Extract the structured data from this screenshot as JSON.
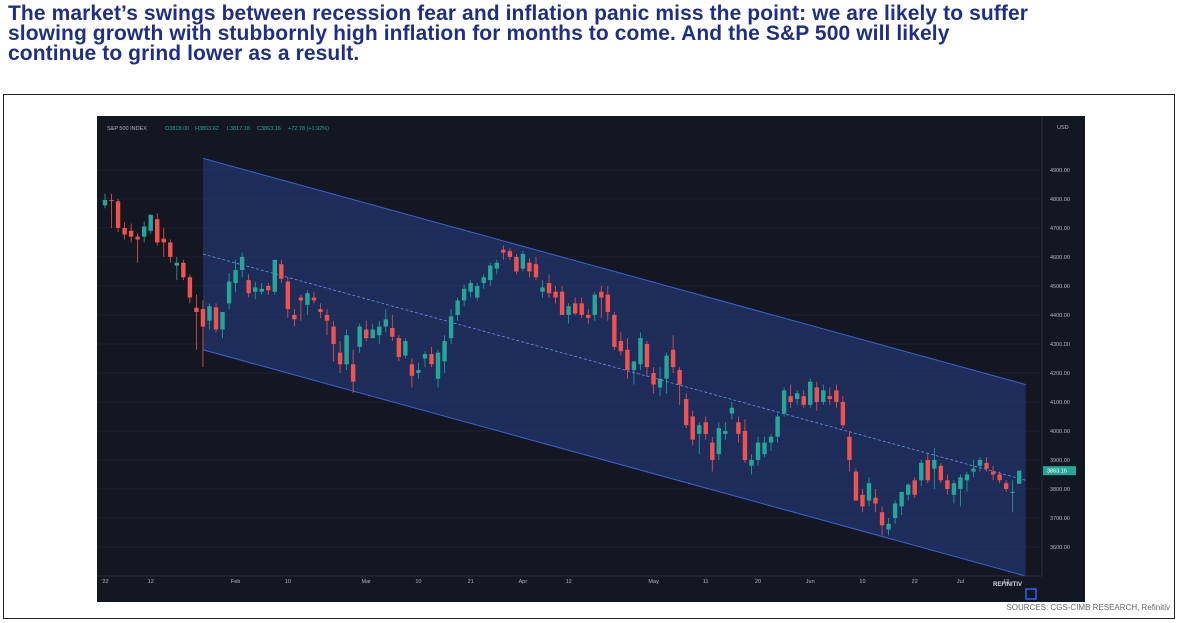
{
  "headline": {
    "line1": "The market’s swings between recession fear and inflation panic miss the point: we are likely to suffer",
    "line2": "slowing growth with stubbornly high inflation for months to come. And the S&P 500 will likely",
    "line3": "continue to grind lower as a result."
  },
  "source": "SOURCES: CGS-CIMB RESEARCH, Refinitiv",
  "chart_data": {
    "type": "candlestick",
    "info": {
      "symbol": "S&P 500 INDEX",
      "open": "O3818.00",
      "high": "H3863.62",
      "low": "L3817.18",
      "close": "C3863.16",
      "change": "+72.78 (+1.92%)"
    },
    "currency": "USD",
    "brand": "REFINITIV",
    "last_price": "3863.16",
    "ylim": [
      3500,
      5010
    ],
    "y_ticks": [
      3600,
      3700,
      3800,
      3900,
      4000,
      4100,
      4200,
      4300,
      4400,
      4500,
      4600,
      4700,
      4800,
      4900
    ],
    "y_tick_labels": [
      "3600.00",
      "3700.00",
      "3800.00",
      "3900.00",
      "4000.00",
      "4100.00",
      "4200.00",
      "4300.00",
      "4400.00",
      "4500.00",
      "4600.00",
      "4700.00",
      "4800.00",
      "4900.00"
    ],
    "x_tick_labels": [
      {
        "i": 0,
        "label": "'22"
      },
      {
        "i": 7,
        "label": "12"
      },
      {
        "i": 20,
        "label": "Feb"
      },
      {
        "i": 28,
        "label": "10"
      },
      {
        "i": 40,
        "label": "Mar"
      },
      {
        "i": 48,
        "label": "10"
      },
      {
        "i": 56,
        "label": "21"
      },
      {
        "i": 64,
        "label": "Apr"
      },
      {
        "i": 71,
        "label": "12"
      },
      {
        "i": 84,
        "label": "May"
      },
      {
        "i": 92,
        "label": "11"
      },
      {
        "i": 100,
        "label": "20"
      },
      {
        "i": 108,
        "label": "Jun"
      },
      {
        "i": 116,
        "label": "10"
      },
      {
        "i": 124,
        "label": "22"
      },
      {
        "i": 131,
        "label": "Jul"
      },
      {
        "i": 138,
        "label": "13"
      }
    ],
    "channel": {
      "upper": [
        [
          15,
          4940
        ],
        [
          141,
          4160
        ]
      ],
      "mid": [
        [
          15,
          4610
        ],
        [
          141,
          3830
        ]
      ],
      "lower": [
        [
          15,
          4280
        ],
        [
          141,
          3500
        ]
      ]
    },
    "candles": [
      [
        4778,
        4818,
        4768,
        4796
      ],
      [
        4796,
        4818,
        4700,
        4795
      ],
      [
        4792,
        4800,
        4686,
        4700
      ],
      [
        4700,
        4720,
        4660,
        4677
      ],
      [
        4690,
        4715,
        4650,
        4670
      ],
      [
        4670,
        4680,
        4580,
        4660
      ],
      [
        4670,
        4722,
        4650,
        4705
      ],
      [
        4690,
        4748,
        4680,
        4745
      ],
      [
        4730,
        4750,
        4640,
        4650
      ],
      [
        4663,
        4700,
        4600,
        4650
      ],
      [
        4650,
        4660,
        4580,
        4600
      ],
      [
        4570,
        4600,
        4520,
        4580
      ],
      [
        4580,
        4590,
        4520,
        4530
      ],
      [
        4530,
        4540,
        4440,
        4460
      ],
      [
        4425,
        4470,
        4280,
        4410
      ],
      [
        4420,
        4450,
        4220,
        4360
      ],
      [
        4380,
        4440,
        4350,
        4430
      ],
      [
        4426,
        4440,
        4340,
        4350
      ],
      [
        4350,
        4400,
        4320,
        4410
      ],
      [
        4440,
        4545,
        4420,
        4515
      ],
      [
        4510,
        4590,
        4480,
        4555
      ],
      [
        4555,
        4615,
        4530,
        4600
      ],
      [
        4520,
        4540,
        4460,
        4475
      ],
      [
        4480,
        4515,
        4455,
        4495
      ],
      [
        4480,
        4510,
        4470,
        4490
      ],
      [
        4500,
        4510,
        4470,
        4485
      ],
      [
        4480,
        4590,
        4470,
        4590
      ],
      [
        4575,
        4590,
        4510,
        4525
      ],
      [
        4515,
        4530,
        4390,
        4420
      ],
      [
        4400,
        4420,
        4360,
        4385
      ],
      [
        4460,
        4470,
        4380,
        4450
      ],
      [
        4435,
        4485,
        4400,
        4475
      ],
      [
        4460,
        4480,
        4440,
        4450
      ],
      [
        4420,
        4440,
        4390,
        4410
      ],
      [
        4400,
        4420,
        4330,
        4380
      ],
      [
        4360,
        4380,
        4240,
        4300
      ],
      [
        4270,
        4310,
        4200,
        4230
      ],
      [
        4230,
        4350,
        4210,
        4330
      ],
      [
        4230,
        4280,
        4130,
        4170
      ],
      [
        4290,
        4370,
        4270,
        4360
      ],
      [
        4350,
        4380,
        4310,
        4320
      ],
      [
        4320,
        4370,
        4320,
        4350
      ],
      [
        4330,
        4380,
        4300,
        4360
      ],
      [
        4360,
        4420,
        4340,
        4385
      ],
      [
        4355,
        4400,
        4310,
        4325
      ],
      [
        4320,
        4330,
        4240,
        4255
      ],
      [
        4260,
        4320,
        4250,
        4310
      ],
      [
        4230,
        4250,
        4150,
        4190
      ],
      [
        4200,
        4235,
        4180,
        4210
      ],
      [
        4250,
        4275,
        4220,
        4265
      ],
      [
        4265,
        4290,
        4220,
        4230
      ],
      [
        4180,
        4280,
        4150,
        4270
      ],
      [
        4240,
        4330,
        4200,
        4310
      ],
      [
        4320,
        4420,
        4300,
        4395
      ],
      [
        4400,
        4460,
        4380,
        4450
      ],
      [
        4450,
        4505,
        4430,
        4490
      ],
      [
        4480,
        4520,
        4460,
        4510
      ],
      [
        4460,
        4510,
        4450,
        4500
      ],
      [
        4510,
        4540,
        4490,
        4530
      ],
      [
        4520,
        4580,
        4500,
        4570
      ],
      [
        4560,
        4590,
        4540,
        4580
      ],
      [
        4625,
        4640,
        4590,
        4615
      ],
      [
        4620,
        4630,
        4590,
        4600
      ],
      [
        4600,
        4610,
        4540,
        4550
      ],
      [
        4560,
        4620,
        4550,
        4610
      ],
      [
        4580,
        4595,
        4530,
        4550
      ],
      [
        4575,
        4600,
        4520,
        4530
      ],
      [
        4480,
        4520,
        4460,
        4495
      ],
      [
        4510,
        4540,
        4460,
        4475
      ],
      [
        4480,
        4500,
        4440,
        4460
      ],
      [
        4480,
        4500,
        4400,
        4400
      ],
      [
        4400,
        4440,
        4370,
        4430
      ],
      [
        4440,
        4460,
        4400,
        4405
      ],
      [
        4440,
        4460,
        4390,
        4400
      ],
      [
        4400,
        4420,
        4370,
        4390
      ],
      [
        4400,
        4480,
        4380,
        4470
      ],
      [
        4480,
        4500,
        4390,
        4460
      ],
      [
        4470,
        4500,
        4380,
        4410
      ],
      [
        4400,
        4410,
        4280,
        4290
      ],
      [
        4310,
        4340,
        4260,
        4275
      ],
      [
        4280,
        4320,
        4180,
        4210
      ],
      [
        4210,
        4240,
        4160,
        4240
      ],
      [
        4230,
        4340,
        4210,
        4320
      ],
      [
        4300,
        4310,
        4190,
        4220
      ],
      [
        4200,
        4220,
        4130,
        4160
      ],
      [
        4150,
        4220,
        4120,
        4180
      ],
      [
        4180,
        4270,
        4130,
        4260
      ],
      [
        4280,
        4330,
        4200,
        4220
      ],
      [
        4210,
        4220,
        4090,
        4160
      ],
      [
        4110,
        4130,
        4010,
        4020
      ],
      [
        4050,
        4070,
        3950,
        3970
      ],
      [
        3990,
        4030,
        3920,
        4020
      ],
      [
        4030,
        4050,
        3970,
        3990
      ],
      [
        3960,
        3980,
        3860,
        3900
      ],
      [
        3920,
        4030,
        3900,
        4010
      ],
      [
        3990,
        4030,
        3970,
        4000
      ],
      [
        4060,
        4100,
        4040,
        4080
      ],
      [
        4030,
        4050,
        3960,
        3990
      ],
      [
        4000,
        4040,
        3890,
        3900
      ],
      [
        3880,
        3920,
        3850,
        3900
      ],
      [
        3900,
        3980,
        3880,
        3960
      ],
      [
        3920,
        3980,
        3910,
        3960
      ],
      [
        3960,
        3990,
        3930,
        3980
      ],
      [
        3980,
        4060,
        3960,
        4050
      ],
      [
        4060,
        4150,
        4050,
        4140
      ],
      [
        4120,
        4160,
        4080,
        4100
      ],
      [
        4110,
        4140,
        4090,
        4130
      ],
      [
        4120,
        4140,
        4080,
        4090
      ],
      [
        4090,
        4180,
        4080,
        4170
      ],
      [
        4150,
        4170,
        4070,
        4100
      ],
      [
        4100,
        4160,
        4090,
        4140
      ],
      [
        4120,
        4150,
        4090,
        4110
      ],
      [
        4140,
        4160,
        4080,
        4100
      ],
      [
        4100,
        4120,
        4010,
        4020
      ],
      [
        3980,
        4000,
        3860,
        3900
      ],
      [
        3860,
        3870,
        3760,
        3760
      ],
      [
        3780,
        3800,
        3720,
        3740
      ],
      [
        3760,
        3840,
        3740,
        3820
      ],
      [
        3770,
        3800,
        3720,
        3750
      ],
      [
        3720,
        3740,
        3640,
        3675
      ],
      [
        3660,
        3700,
        3640,
        3680
      ],
      [
        3700,
        3760,
        3680,
        3750
      ],
      [
        3740,
        3790,
        3710,
        3790
      ],
      [
        3780,
        3820,
        3760,
        3815
      ],
      [
        3830,
        3840,
        3770,
        3780
      ],
      [
        3830,
        3900,
        3810,
        3890
      ],
      [
        3900,
        3920,
        3820,
        3830
      ],
      [
        3870,
        3940,
        3800,
        3900
      ],
      [
        3880,
        3890,
        3820,
        3830
      ],
      [
        3830,
        3850,
        3780,
        3800
      ],
      [
        3780,
        3830,
        3750,
        3820
      ],
      [
        3800,
        3850,
        3740,
        3840
      ],
      [
        3830,
        3860,
        3790,
        3850
      ],
      [
        3860,
        3900,
        3840,
        3870
      ],
      [
        3880,
        3910,
        3860,
        3900
      ],
      [
        3890,
        3910,
        3860,
        3870
      ],
      [
        3860,
        3880,
        3830,
        3850
      ],
      [
        3850,
        3860,
        3820,
        3830
      ],
      [
        3820,
        3830,
        3790,
        3800
      ],
      [
        3790,
        3830,
        3720,
        3790
      ],
      [
        3818,
        3864,
        3817,
        3863
      ]
    ]
  }
}
